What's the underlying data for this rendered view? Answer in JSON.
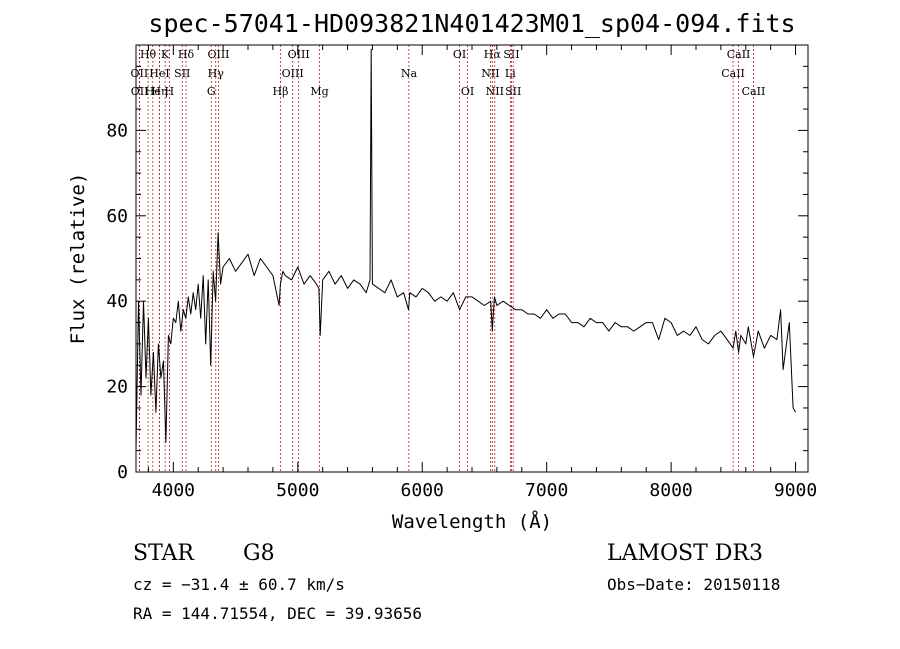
{
  "chart_data": {
    "type": "line",
    "title": "spec-57041-HD093821N401423M01_sp04-094.fits",
    "xlabel": "Wavelength (Å)",
    "ylabel": "Flux (relative)",
    "xlim": [
      3700,
      9100
    ],
    "ylim": [
      0,
      100
    ],
    "xticks": [
      4000,
      5000,
      6000,
      7000,
      8000,
      9000
    ],
    "yticks": [
      0,
      20,
      40,
      60,
      80
    ],
    "series": [
      {
        "name": "spectrum",
        "x": [
          3700,
          3720,
          3740,
          3760,
          3780,
          3800,
          3820,
          3840,
          3860,
          3880,
          3900,
          3920,
          3940,
          3960,
          3980,
          4000,
          4020,
          4040,
          4060,
          4080,
          4100,
          4120,
          4140,
          4160,
          4180,
          4200,
          4220,
          4240,
          4260,
          4280,
          4300,
          4320,
          4340,
          4360,
          4380,
          4400,
          4450,
          4500,
          4550,
          4600,
          4650,
          4700,
          4750,
          4800,
          4850,
          4860,
          4880,
          4900,
          4950,
          5000,
          5050,
          5100,
          5150,
          5170,
          5180,
          5200,
          5250,
          5300,
          5350,
          5400,
          5450,
          5500,
          5550,
          5580,
          5590,
          5600,
          5650,
          5700,
          5750,
          5800,
          5850,
          5890,
          5900,
          5950,
          6000,
          6050,
          6100,
          6150,
          6200,
          6250,
          6300,
          6350,
          6400,
          6450,
          6500,
          6550,
          6563,
          6580,
          6600,
          6650,
          6700,
          6750,
          6800,
          6850,
          6900,
          6950,
          7000,
          7050,
          7100,
          7150,
          7200,
          7250,
          7300,
          7350,
          7400,
          7450,
          7500,
          7550,
          7600,
          7650,
          7700,
          7750,
          7800,
          7850,
          7900,
          7950,
          8000,
          8050,
          8100,
          8150,
          8200,
          8250,
          8300,
          8350,
          8400,
          8450,
          8498,
          8520,
          8542,
          8560,
          8600,
          8620,
          8662,
          8700,
          8750,
          8800,
          8850,
          8880,
          8900,
          8950,
          8980,
          9000
        ],
        "values": [
          5,
          40,
          18,
          40,
          22,
          36,
          18,
          28,
          14,
          30,
          22,
          26,
          7,
          32,
          30,
          36,
          35,
          40,
          33,
          38,
          36,
          41,
          37,
          42,
          38,
          44,
          36,
          46,
          30,
          45,
          25,
          47,
          40,
          56,
          44,
          48,
          50,
          47,
          49,
          51,
          46,
          50,
          48,
          46,
          39,
          44,
          47,
          46,
          45,
          48,
          44,
          46,
          44,
          43,
          32,
          45,
          47,
          44,
          46,
          43,
          45,
          44,
          42,
          45,
          99,
          44,
          43,
          42,
          45,
          41,
          42,
          38,
          42,
          41,
          43,
          42,
          40,
          41,
          40,
          42,
          38,
          41,
          41,
          40,
          39,
          40,
          33,
          41,
          39,
          40,
          39,
          38,
          38,
          37,
          37,
          36,
          38,
          36,
          37,
          37,
          35,
          35,
          34,
          36,
          35,
          35,
          33,
          35,
          34,
          34,
          33,
          34,
          35,
          35,
          31,
          36,
          35,
          32,
          33,
          32,
          34,
          31,
          30,
          32,
          33,
          31,
          29,
          33,
          28,
          32,
          30,
          34,
          27,
          33,
          29,
          32,
          31,
          38,
          24,
          35,
          15,
          14
        ]
      }
    ],
    "spectral_lines": [
      {
        "label": "Hθ",
        "x": 3797,
        "row": 1
      },
      {
        "label": "OII",
        "x": 3727,
        "row": 2
      },
      {
        "label": "OII",
        "x": 3729,
        "row": 3
      },
      {
        "label": "He",
        "x": 3835,
        "row": 3
      },
      {
        "label": "Hη",
        "x": 3889,
        "row": 3
      },
      {
        "label": "HeI",
        "x": 3889,
        "row": 2
      },
      {
        "label": "K",
        "x": 3934,
        "row": 1
      },
      {
        "label": "SII",
        "x": 4072,
        "row": 2
      },
      {
        "label": "H",
        "x": 3968,
        "row": 3
      },
      {
        "label": "Hδ",
        "x": 4102,
        "row": 1
      },
      {
        "label": "OIII",
        "x": 4363,
        "row": 1
      },
      {
        "label": "Hγ",
        "x": 4341,
        "row": 2
      },
      {
        "label": "G",
        "x": 4305,
        "row": 3
      },
      {
        "label": "Hβ",
        "x": 4861,
        "row": 3
      },
      {
        "label": "OIII",
        "x": 4959,
        "row": 2
      },
      {
        "label": "OIII",
        "x": 5007,
        "row": 1
      },
      {
        "label": "Mg",
        "x": 5175,
        "row": 3
      },
      {
        "label": "Na",
        "x": 5893,
        "row": 2
      },
      {
        "label": "OI",
        "x": 6300,
        "row": 1
      },
      {
        "label": "OI",
        "x": 6364,
        "row": 3
      },
      {
        "label": "Hα",
        "x": 6563,
        "row": 1
      },
      {
        "label": "NII",
        "x": 6548,
        "row": 2
      },
      {
        "label": "NII",
        "x": 6583,
        "row": 3
      },
      {
        "label": "SII",
        "x": 6717,
        "row": 1
      },
      {
        "label": "Li",
        "x": 6708,
        "row": 2
      },
      {
        "label": "SII",
        "x": 6731,
        "row": 3
      },
      {
        "label": "CaII",
        "x": 8498,
        "row": 2
      },
      {
        "label": "CaII",
        "x": 8542,
        "row": 1
      },
      {
        "label": "CaII",
        "x": 8662,
        "row": 3
      }
    ]
  },
  "info": {
    "object_class": "STAR",
    "subclass": "G8",
    "survey": "LAMOST DR3",
    "cz": "cz = −31.4 ± 60.7 km/s",
    "obs_date": "Obs−Date: 20150118",
    "coords": "RA = 144.71554, DEC =  39.93656"
  },
  "colors": {
    "spectrum": "#000000",
    "line_marker": "#b22222",
    "axis": "#000000"
  }
}
